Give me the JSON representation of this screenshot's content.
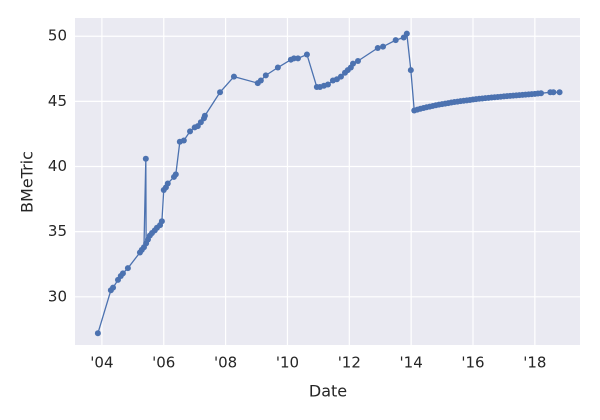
{
  "chart_data": {
    "type": "line",
    "xlabel": "Date",
    "ylabel": "BMeTric",
    "x": [
      2003.87,
      2004.29,
      2004.36,
      2004.52,
      2004.61,
      2004.68,
      2004.84,
      2005.23,
      2005.29,
      2005.36,
      2005.42,
      2005.43,
      2005.49,
      2005.55,
      2005.62,
      2005.71,
      2005.78,
      2005.88,
      2005.94,
      2006.0,
      2006.07,
      2006.13,
      2006.33,
      2006.39,
      2006.52,
      2006.65,
      2006.85,
      2007.0,
      2007.1,
      2007.2,
      2007.3,
      2007.33,
      2007.82,
      2008.27,
      2009.04,
      2009.14,
      2009.3,
      2009.69,
      2010.11,
      2010.21,
      2010.34,
      2010.63,
      2010.95,
      2011.05,
      2011.18,
      2011.31,
      2011.47,
      2011.6,
      2011.73,
      2011.86,
      2011.95,
      2012.05,
      2012.12,
      2012.28,
      2012.92,
      2013.09,
      2013.5,
      2013.76,
      2013.86,
      2013.99,
      2014.1,
      2014.2,
      2014.3,
      2014.4,
      2014.5,
      2014.6,
      2014.7,
      2014.8,
      2014.9,
      2015.0,
      2015.1,
      2015.2,
      2015.3,
      2015.4,
      2015.5,
      2015.6,
      2015.7,
      2015.8,
      2015.9,
      2016.0,
      2016.1,
      2016.2,
      2016.3,
      2016.4,
      2016.5,
      2016.6,
      2016.7,
      2016.8,
      2016.9,
      2017.0,
      2017.1,
      2017.2,
      2017.3,
      2017.4,
      2017.5,
      2017.6,
      2017.7,
      2017.8,
      2017.9,
      2018.0,
      2018.1,
      2018.2,
      2018.5,
      2018.6,
      2018.8
    ],
    "values": [
      27.2,
      30.5,
      30.7,
      31.3,
      31.6,
      31.8,
      32.2,
      33.4,
      33.6,
      33.8,
      40.6,
      34.1,
      34.4,
      34.7,
      34.9,
      35.1,
      35.3,
      35.5,
      35.8,
      38.2,
      38.4,
      38.7,
      39.2,
      39.4,
      41.9,
      42.0,
      42.7,
      43.0,
      43.1,
      43.4,
      43.7,
      43.9,
      45.7,
      46.9,
      46.4,
      46.6,
      47.0,
      47.6,
      48.2,
      48.3,
      48.3,
      48.6,
      46.1,
      46.1,
      46.2,
      46.3,
      46.6,
      46.7,
      46.9,
      47.2,
      47.4,
      47.6,
      47.9,
      48.1,
      49.1,
      49.2,
      49.7,
      49.9,
      50.2,
      47.4,
      44.3,
      44.37,
      44.43,
      44.49,
      44.55,
      44.6,
      44.65,
      44.7,
      44.75,
      44.79,
      44.83,
      44.87,
      44.91,
      44.95,
      44.98,
      45.02,
      45.05,
      45.08,
      45.11,
      45.14,
      45.17,
      45.2,
      45.22,
      45.25,
      45.27,
      45.3,
      45.32,
      45.34,
      45.36,
      45.38,
      45.4,
      45.42,
      45.44,
      45.46,
      45.48,
      45.5,
      45.52,
      45.54,
      45.56,
      45.58,
      45.6,
      45.62,
      45.7,
      45.7,
      45.7
    ],
    "color": "#4c72b0",
    "xlim": [
      2003.13,
      2019.46
    ],
    "ylim": [
      26.3,
      51.4
    ],
    "xticks": [
      {
        "value": 2004,
        "label": "'04"
      },
      {
        "value": 2006,
        "label": "'06"
      },
      {
        "value": 2008,
        "label": "'08"
      },
      {
        "value": 2010,
        "label": "'10"
      },
      {
        "value": 2012,
        "label": "'12"
      },
      {
        "value": 2014,
        "label": "'14"
      },
      {
        "value": 2016,
        "label": "'16"
      },
      {
        "value": 2018,
        "label": "'18"
      }
    ],
    "yticks": [
      30,
      35,
      40,
      45,
      50
    ],
    "grid": true
  }
}
